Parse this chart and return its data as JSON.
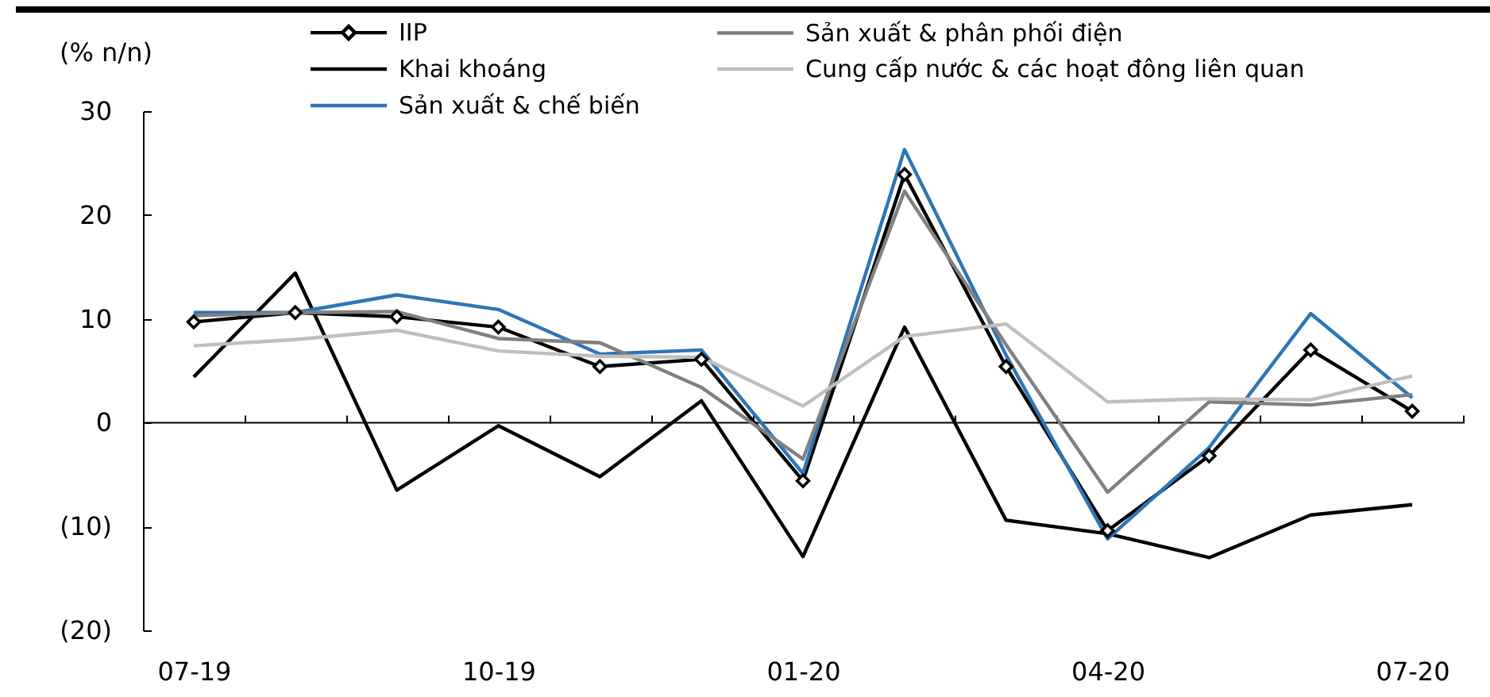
{
  "chart_data": {
    "type": "line",
    "ylabel": "(% n/n)",
    "categories": [
      "07-19",
      null,
      null,
      "10-19",
      null,
      null,
      "01-20",
      null,
      null,
      "04-20",
      null,
      null,
      "07-20"
    ],
    "series": [
      {
        "name": "IIP",
        "color": "#000000",
        "marker": "diamond",
        "values": [
          9.7,
          10.6,
          10.2,
          9.2,
          5.4,
          6.1,
          -5.6,
          23.9,
          5.4,
          -10.4,
          -3.2,
          7.0,
          1.1
        ]
      },
      {
        "name": "Khai khoáng",
        "color": "#000000",
        "values": [
          4.4,
          14.4,
          -6.5,
          -0.3,
          -5.2,
          2.1,
          -12.9,
          9.2,
          -9.4,
          -10.7,
          -13.0,
          -8.9,
          -7.9
        ]
      },
      {
        "name": "Sản xuất & chế biến",
        "color": "#2e75b6",
        "values": [
          10.6,
          10.6,
          12.3,
          10.9,
          6.6,
          7.0,
          -4.9,
          26.3,
          6.5,
          -11.2,
          -2.4,
          10.5,
          2.4
        ]
      },
      {
        "name": "Sản xuất & phân phối điện",
        "color": "#808080",
        "values": [
          10.3,
          10.6,
          10.7,
          8.1,
          7.7,
          3.4,
          -3.5,
          22.3,
          7.5,
          -6.7,
          2.0,
          1.7,
          2.7
        ]
      },
      {
        "name": "Cung cấp nước & các hoạt đông liên quan",
        "color": "#bfbfbf",
        "values": [
          7.4,
          8.0,
          8.9,
          6.9,
          6.4,
          6.3,
          1.6,
          8.3,
          9.5,
          2.0,
          2.3,
          2.2,
          4.5
        ]
      }
    ],
    "ylim": [
      -20,
      30
    ],
    "yticks": [
      {
        "value": -20,
        "label": "(20)"
      },
      {
        "value": -10,
        "label": "(10)"
      },
      0,
      10,
      20,
      30
    ],
    "ref_lines": [
      {
        "axis": "y",
        "value": 0,
        "color": "#000000"
      }
    ],
    "grid": false,
    "legend": "top",
    "line_style": "solid"
  }
}
